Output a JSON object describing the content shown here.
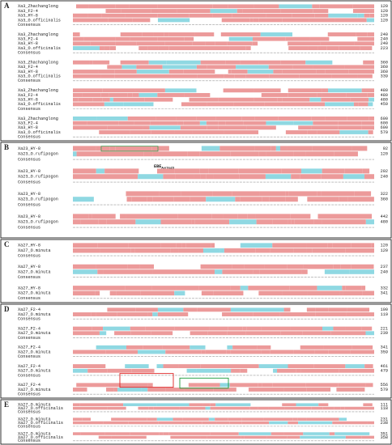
{
  "panels": [
    {
      "label": "A",
      "blocks": [
        {
          "rows": [
            {
              "name": "Xa3_Zhachanglong",
              "end": 120
            },
            {
              "name": "Xa3_F2-4",
              "end": 120
            },
            {
              "name": "Xa3_HY-8",
              "end": 120
            },
            {
              "name": "Xa3_O.officinalis",
              "end": 120
            }
          ],
          "consensus": "Consensus"
        },
        {
          "rows": [
            {
              "name": "Xa3_Zhachanglong",
              "end": 240
            },
            {
              "name": "Xa3_F2-4",
              "end": 240
            },
            {
              "name": "Xa3_HY-8",
              "end": 240
            },
            {
              "name": "Xa3_O.officinalis",
              "end": 223
            }
          ],
          "consensus": "Consensus"
        },
        {
          "rows": [
            {
              "name": "Xa3_Zhachanglong",
              "end": 360
            },
            {
              "name": "Xa3_F2-4",
              "end": 360
            },
            {
              "name": "Xa3_HY-8",
              "end": 360
            },
            {
              "name": "Xa3_O.officinalis",
              "end": 339
            }
          ],
          "consensus": "Consensus"
        },
        {
          "rows": [
            {
              "name": "Xa3_Zhachanglong",
              "end": 480
            },
            {
              "name": "Xa3_F2-4",
              "end": 480
            },
            {
              "name": "Xa3_HY-8",
              "end": 480
            },
            {
              "name": "Xa3_O.officinalis",
              "end": 459
            }
          ],
          "consensus": "Consensus"
        },
        {
          "rows": [
            {
              "name": "Xa3_Zhachanglong",
              "end": 600
            },
            {
              "name": "Xa3_F2-4",
              "end": 600
            },
            {
              "name": "Xa3_HY-8",
              "end": 600
            },
            {
              "name": "Xa3_O.officinalis",
              "end": 579
            }
          ],
          "consensus": "Consensus"
        }
      ]
    },
    {
      "label": "B",
      "annotation": {
        "text": "EBE",
        "subscript": "AvrXa23"
      },
      "blocks": [
        {
          "rows": [
            {
              "name": "Xa23_HY-8",
              "end": 92
            },
            {
              "name": "Xa23_O.rufipogon",
              "end": 120
            }
          ],
          "consensus": "Consensus"
        },
        {
          "rows": [
            {
              "name": "Xa23_HY-8",
              "end": 202
            },
            {
              "name": "Xa23_O.rufipogon",
              "end": 240
            }
          ],
          "consensus": "Consensus"
        },
        {
          "rows": [
            {
              "name": "Xa23_HY-8",
              "end": 322
            },
            {
              "name": "Xa23_O.rufipogon",
              "end": 360
            }
          ],
          "consensus": "Consensus"
        },
        {
          "rows": [
            {
              "name": "Xa23_HY-8",
              "end": 442
            },
            {
              "name": "Xa23_O.rufipogon",
              "end": 480
            }
          ],
          "consensus": "Consensus"
        }
      ]
    },
    {
      "label": "C",
      "blocks": [
        {
          "rows": [
            {
              "name": "Xa27_HY-8",
              "end": 120
            },
            {
              "name": "Xa27_O.minuta",
              "end": 120
            }
          ],
          "consensus": "Consensus"
        },
        {
          "rows": [
            {
              "name": "Xa27_HY-8",
              "end": 237
            },
            {
              "name": "Xa27_O.minuta",
              "end": 240
            }
          ],
          "consensus": "Consensus"
        },
        {
          "rows": [
            {
              "name": "Xa27_HY-8",
              "end": 332
            },
            {
              "name": "Xa27_O.minuta",
              "end": 341
            }
          ],
          "consensus": "Consensus"
        }
      ]
    },
    {
      "label": "D",
      "blocks": [
        {
          "rows": [
            {
              "name": "Xa27_F2-4",
              "end": 100
            },
            {
              "name": "Xa27_O.minuta",
              "end": 119
            }
          ],
          "consensus": "Consensus"
        },
        {
          "rows": [
            {
              "name": "Xa27_F2-4",
              "end": 221
            },
            {
              "name": "Xa27_O.minuta",
              "end": 239
            }
          ],
          "consensus": "Consensus"
        },
        {
          "rows": [
            {
              "name": "Xa27_F2-4",
              "end": 341
            },
            {
              "name": "Xa27_O.minuta",
              "end": 359
            }
          ],
          "consensus": "Consensus"
        },
        {
          "rows": [
            {
              "name": "Xa27_F2-4",
              "end": 461
            },
            {
              "name": "Xa27_O.minuta",
              "end": 479
            }
          ],
          "consensus": "Consensus"
        },
        {
          "rows": [
            {
              "name": "Xa27_F2-4",
              "end": 556
            },
            {
              "name": "Xa27_O.minuta",
              "end": 579
            }
          ],
          "consensus": "Consensus"
        }
      ]
    },
    {
      "label": "E",
      "blocks": [
        {
          "rows": [
            {
              "name": "Xa27_O.minuta",
              "end": 111
            },
            {
              "name": "Xa27_O.officinalis",
              "end": 118
            }
          ],
          "consensus": "Consensus"
        },
        {
          "rows": [
            {
              "name": "Xa27_O.minuta",
              "end": 231
            },
            {
              "name": "Xa27_O.officinalis",
              "end": 238
            }
          ],
          "consensus": "Consensus"
        },
        {
          "rows": [
            {
              "name": "Xa27_O.minuta",
              "end": 351
            },
            {
              "name": "Xa27_O.officinalis",
              "end": 358
            }
          ],
          "consensus": "Consensus"
        }
      ]
    }
  ]
}
